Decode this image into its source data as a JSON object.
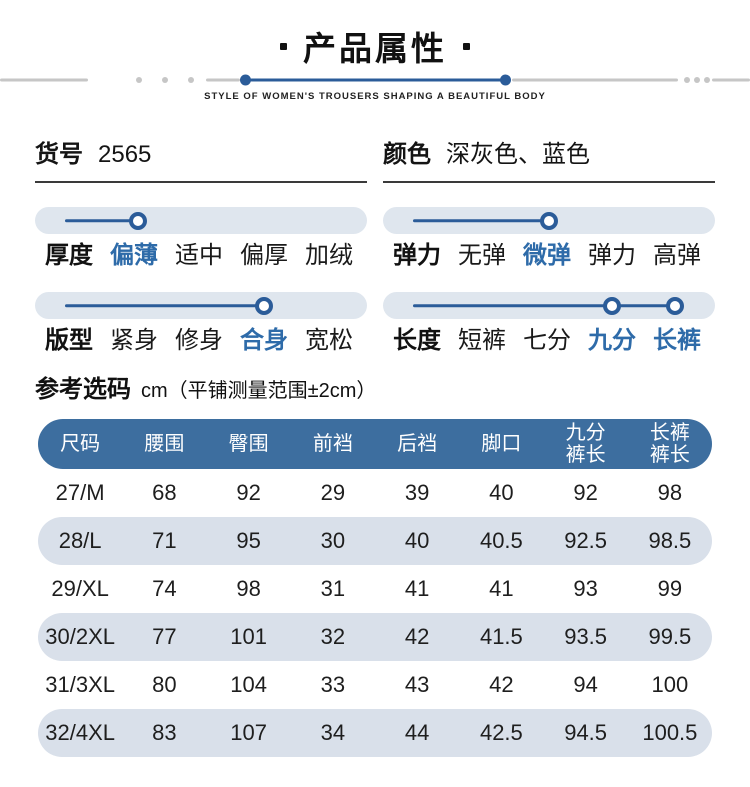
{
  "header": {
    "title": "产品属性",
    "subtitle": "STYLE OF WOMEN'S TROUSERS SHAPING A BEAUTIFUL BODY"
  },
  "info": {
    "item_no": {
      "label": "货号",
      "value": "2565"
    },
    "color": {
      "label": "颜色",
      "value": "深灰色、蓝色"
    }
  },
  "attributes": [
    {
      "label": "厚度",
      "options": [
        "偏薄",
        "适中",
        "偏厚",
        "加绒"
      ],
      "selected": [
        0
      ],
      "knob_positions_pct": [
        31
      ]
    },
    {
      "label": "弹力",
      "options": [
        "无弹",
        "微弹",
        "弹力",
        "高弹"
      ],
      "selected": [
        1
      ],
      "knob_positions_pct": [
        50
      ]
    },
    {
      "label": "版型",
      "options": [
        "紧身",
        "修身",
        "合身",
        "宽松"
      ],
      "selected": [
        2
      ],
      "knob_positions_pct": [
        69
      ]
    },
    {
      "label": "长度",
      "options": [
        "短裤",
        "七分",
        "九分",
        "长裤"
      ],
      "selected": [
        2,
        3
      ],
      "knob_positions_pct": [
        69,
        88
      ]
    }
  ],
  "size_table": {
    "title": "参考选码",
    "unit_note": "cm（平铺测量范围±2cm）",
    "columns": [
      "尺码",
      "腰围",
      "臀围",
      "前裆",
      "后裆",
      "脚口",
      "九分\n裤长",
      "长裤\n裤长"
    ],
    "rows": [
      [
        "27/M",
        "68",
        "92",
        "29",
        "39",
        "40",
        "92",
        "98"
      ],
      [
        "28/L",
        "71",
        "95",
        "30",
        "40",
        "40.5",
        "92.5",
        "98.5"
      ],
      [
        "29/XL",
        "74",
        "98",
        "31",
        "41",
        "41",
        "93",
        "99"
      ],
      [
        "30/2XL",
        "77",
        "101",
        "32",
        "42",
        "41.5",
        "93.5",
        "99.5"
      ],
      [
        "31/3XL",
        "80",
        "104",
        "33",
        "43",
        "42",
        "94",
        "100"
      ],
      [
        "32/4XL",
        "83",
        "107",
        "34",
        "44",
        "42.5",
        "94.5",
        "100.5"
      ]
    ]
  },
  "colors": {
    "accent_blue": "#2b5c99",
    "table_header_blue": "#3d6e9f",
    "row_alt_blue": "#d9e0ea",
    "slider_track": "#dfe6ee",
    "highlight_text_blue": "#2e6ba9"
  }
}
